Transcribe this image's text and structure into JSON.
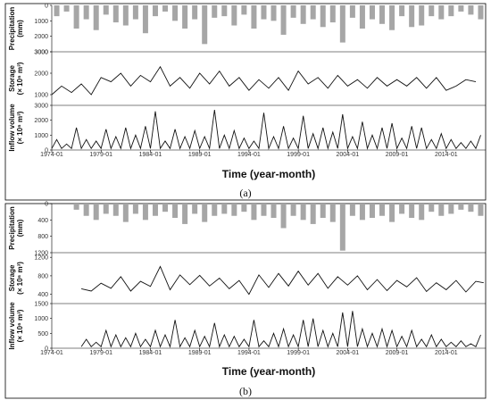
{
  "panels": [
    {
      "caption": "(a)",
      "xlabel": "Time (year-month)",
      "x_ticks": [
        "1974-01",
        "1979-01",
        "1984-01",
        "1989-01",
        "1994-01",
        "1999-01",
        "2004-01",
        "2009-01",
        "2014-01"
      ],
      "subplots": {
        "precip": {
          "ylabel_lines": [
            "Precipitation",
            "(mm)"
          ],
          "ticks": [
            "0",
            "1000",
            "2000",
            "3000"
          ],
          "ylim": [
            0,
            3000
          ],
          "inverted": true
        },
        "storage": {
          "ylabel_lines": [
            "Storage",
            "(× 10⁶ m³)"
          ],
          "ticks": [
            "1000",
            "2000",
            "3000"
          ],
          "ylim": [
            500,
            3000
          ]
        },
        "inflow": {
          "ylabel_lines": [
            "Inflow volume",
            "(× 10⁶ m³)"
          ],
          "ticks": [
            "0",
            "1000",
            "2000",
            "3000"
          ],
          "ylim": [
            0,
            3000
          ]
        }
      }
    },
    {
      "caption": "(b)",
      "xlabel": "Time (year-month)",
      "x_ticks": [
        "1974-01",
        "1979-01",
        "1984-01",
        "1989-01",
        "1994-01",
        "1999-01",
        "2004-01",
        "2009-01",
        "2014-01"
      ],
      "subplots": {
        "precip": {
          "ylabel_lines": [
            "Precipitation",
            "(mm)"
          ],
          "ticks": [
            "0",
            "400",
            "800",
            "1200"
          ],
          "ylim": [
            0,
            1200
          ],
          "inverted": true
        },
        "storage": {
          "ylabel_lines": [
            "Storage",
            "(× 10⁶ m³)"
          ],
          "ticks": [
            "400",
            "800",
            "1200"
          ],
          "ylim": [
            200,
            1300
          ]
        },
        "inflow": {
          "ylabel_lines": [
            "Inflow volume",
            "(× 10⁶ m³)"
          ],
          "ticks": [
            "0",
            "500",
            "1000",
            "1500"
          ],
          "ylim": [
            0,
            1500
          ]
        }
      }
    }
  ],
  "chart_data": [
    {
      "type": "bar",
      "panel": "a",
      "name": "precipitation",
      "x_range": [
        "1974-01",
        "2017-12"
      ],
      "x_year": [
        1974.5,
        1975.5,
        1976.5,
        1977.5,
        1978.5,
        1979.5,
        1980.5,
        1981.5,
        1982.5,
        1983.5,
        1984.5,
        1985.5,
        1986.5,
        1987.5,
        1988.5,
        1989.5,
        1990.5,
        1991.5,
        1992.5,
        1993.5,
        1994.5,
        1995.5,
        1996.5,
        1997.5,
        1998.5,
        1999.5,
        2000.5,
        2001.5,
        2002.5,
        2003.5,
        2004.5,
        2005.5,
        2006.5,
        2007.5,
        2008.5,
        2009.5,
        2010.5,
        2011.5,
        2012.5,
        2013.5,
        2014.5,
        2015.5,
        2016.5,
        2017.5
      ],
      "values": [
        700,
        400,
        1500,
        900,
        1600,
        600,
        1100,
        1300,
        900,
        1800,
        700,
        400,
        1000,
        1500,
        900,
        2500,
        800,
        700,
        1300,
        600,
        1500,
        900,
        1000,
        1900,
        800,
        1200,
        900,
        1400,
        1100,
        2400,
        800,
        1500,
        900,
        1200,
        1600,
        700,
        1400,
        1300,
        700,
        900,
        700,
        400,
        600,
        900
      ],
      "ylim": [
        0,
        3000
      ]
    },
    {
      "type": "line",
      "panel": "a",
      "name": "storage",
      "x_year": [
        1974.0,
        1975.0,
        1976.0,
        1977.0,
        1978.0,
        1979.0,
        1980.0,
        1981.0,
        1982.0,
        1983.0,
        1984.0,
        1985.0,
        1986.0,
        1987.0,
        1988.0,
        1989.0,
        1990.0,
        1991.0,
        1992.0,
        1993.0,
        1994.0,
        1995.0,
        1996.0,
        1997.0,
        1998.0,
        1999.0,
        2000.0,
        2001.0,
        2002.0,
        2003.0,
        2004.0,
        2005.0,
        2006.0,
        2007.0,
        2008.0,
        2009.0,
        2010.0,
        2011.0,
        2012.0,
        2013.0,
        2014.0,
        2015.0,
        2016.0,
        2017.0
      ],
      "values": [
        1000,
        1400,
        1100,
        1500,
        1000,
        1800,
        1600,
        2000,
        1400,
        1900,
        1600,
        2300,
        1400,
        1800,
        1300,
        2000,
        1500,
        2100,
        1400,
        1800,
        1200,
        1700,
        1300,
        1800,
        1200,
        2100,
        1500,
        1800,
        1300,
        1900,
        1400,
        1700,
        1300,
        1800,
        1400,
        1700,
        1400,
        1800,
        1300,
        1800,
        1200,
        1400,
        1700,
        1600
      ],
      "ylim": [
        500,
        3000
      ]
    },
    {
      "type": "line",
      "panel": "a",
      "name": "inflow volume",
      "x_year": [
        1974.0,
        1974.5,
        1975.0,
        1975.5,
        1976.0,
        1976.5,
        1977.0,
        1977.5,
        1978.0,
        1978.5,
        1979.0,
        1979.5,
        1980.0,
        1980.5,
        1981.0,
        1981.5,
        1982.0,
        1982.5,
        1983.0,
        1983.5,
        1984.0,
        1984.5,
        1985.0,
        1985.5,
        1986.0,
        1986.5,
        1987.0,
        1987.5,
        1988.0,
        1988.5,
        1989.0,
        1989.5,
        1990.0,
        1990.5,
        1991.0,
        1991.5,
        1992.0,
        1992.5,
        1993.0,
        1993.5,
        1994.0,
        1994.5,
        1995.0,
        1995.5,
        1996.0,
        1996.5,
        1997.0,
        1997.5,
        1998.0,
        1998.5,
        1999.0,
        1999.5,
        2000.0,
        2000.5,
        2001.0,
        2001.5,
        2002.0,
        2002.5,
        2003.0,
        2003.5,
        2004.0,
        2004.5,
        2005.0,
        2005.5,
        2006.0,
        2006.5,
        2007.0,
        2007.5,
        2008.0,
        2008.5,
        2009.0,
        2009.5,
        2010.0,
        2010.5,
        2011.0,
        2011.5,
        2012.0,
        2012.5,
        2013.0,
        2013.5,
        2014.0,
        2014.5,
        2015.0,
        2015.5,
        2016.0,
        2016.5,
        2017.0,
        2017.5
      ],
      "values": [
        100,
        700,
        100,
        400,
        100,
        1500,
        100,
        700,
        100,
        600,
        100,
        1400,
        100,
        900,
        100,
        1500,
        100,
        1000,
        100,
        1600,
        100,
        2600,
        100,
        600,
        100,
        1400,
        100,
        900,
        100,
        1300,
        100,
        900,
        100,
        2700,
        100,
        1000,
        100,
        1300,
        100,
        800,
        100,
        600,
        100,
        2500,
        100,
        900,
        100,
        1600,
        100,
        800,
        100,
        2300,
        100,
        1100,
        100,
        1500,
        100,
        1200,
        100,
        2400,
        100,
        900,
        100,
        1900,
        100,
        1000,
        100,
        1500,
        100,
        1800,
        100,
        800,
        100,
        1600,
        100,
        1500,
        100,
        700,
        100,
        1100,
        100,
        700,
        100,
        500,
        100,
        600,
        100,
        1000
      ],
      "ylim": [
        0,
        3000
      ]
    },
    {
      "type": "bar",
      "panel": "b",
      "name": "precipitation",
      "x_year": [
        1976.5,
        1977.5,
        1978.5,
        1979.5,
        1980.5,
        1981.5,
        1982.5,
        1983.5,
        1984.5,
        1985.5,
        1986.5,
        1987.5,
        1988.5,
        1989.5,
        1990.5,
        1991.5,
        1992.5,
        1993.5,
        1994.5,
        1995.5,
        1996.5,
        1997.5,
        1998.5,
        1999.5,
        2000.5,
        2001.5,
        2002.5,
        2003.5,
        2004.5,
        2005.5,
        2006.5,
        2007.5,
        2008.5,
        2009.5,
        2010.5,
        2011.5,
        2012.5,
        2013.5,
        2014.5,
        2015.5,
        2016.5,
        2017.5
      ],
      "values": [
        150,
        300,
        400,
        250,
        300,
        450,
        250,
        400,
        300,
        200,
        350,
        500,
        250,
        450,
        300,
        250,
        300,
        200,
        400,
        300,
        350,
        600,
        300,
        400,
        500,
        350,
        450,
        1150,
        300,
        400,
        350,
        300,
        450,
        250,
        350,
        400,
        200,
        300,
        250,
        150,
        200,
        300
      ],
      "ylim": [
        0,
        1200
      ]
    },
    {
      "type": "line",
      "panel": "b",
      "name": "storage",
      "x_year": [
        1977.0,
        1978.0,
        1979.0,
        1980.0,
        1981.0,
        1982.0,
        1983.0,
        1984.0,
        1985.0,
        1986.0,
        1987.0,
        1988.0,
        1989.0,
        1990.0,
        1991.0,
        1992.0,
        1993.0,
        1994.0,
        1995.0,
        1996.0,
        1997.0,
        1998.0,
        1999.0,
        2000.0,
        2001.0,
        2002.0,
        2003.0,
        2004.0,
        2005.0,
        2006.0,
        2007.0,
        2008.0,
        2009.0,
        2010.0,
        2011.0,
        2012.0,
        2013.0,
        2014.0,
        2015.0,
        2016.0,
        2017.0,
        2017.8
      ],
      "values": [
        520,
        470,
        640,
        530,
        780,
        470,
        680,
        570,
        1000,
        500,
        820,
        610,
        810,
        580,
        750,
        520,
        700,
        400,
        820,
        550,
        850,
        580,
        900,
        600,
        850,
        530,
        780,
        600,
        800,
        500,
        720,
        480,
        700,
        560,
        760,
        460,
        650,
        500,
        700,
        450,
        680,
        650
      ],
      "ylim": [
        200,
        1300
      ]
    },
    {
      "type": "line",
      "panel": "b",
      "name": "inflow volume",
      "x_year": [
        1977.0,
        1977.5,
        1978.0,
        1978.5,
        1979.0,
        1979.5,
        1980.0,
        1980.5,
        1981.0,
        1981.5,
        1982.0,
        1982.5,
        1983.0,
        1983.5,
        1984.0,
        1984.5,
        1985.0,
        1985.5,
        1986.0,
        1986.5,
        1987.0,
        1987.5,
        1988.0,
        1988.5,
        1989.0,
        1989.5,
        1990.0,
        1990.5,
        1991.0,
        1991.5,
        1992.0,
        1992.5,
        1993.0,
        1993.5,
        1994.0,
        1994.5,
        1995.0,
        1995.5,
        1996.0,
        1996.5,
        1997.0,
        1997.5,
        1998.0,
        1998.5,
        1999.0,
        1999.5,
        2000.0,
        2000.5,
        2001.0,
        2001.5,
        2002.0,
        2002.5,
        2003.0,
        2003.5,
        2004.0,
        2004.5,
        2005.0,
        2005.5,
        2006.0,
        2006.5,
        2007.0,
        2007.5,
        2008.0,
        2008.5,
        2009.0,
        2009.5,
        2010.0,
        2010.5,
        2011.0,
        2011.5,
        2012.0,
        2012.5,
        2013.0,
        2013.5,
        2014.0,
        2014.5,
        2015.0,
        2015.5,
        2016.0,
        2016.5,
        2017.0,
        2017.5
      ],
      "values": [
        50,
        300,
        50,
        200,
        50,
        600,
        50,
        450,
        50,
        350,
        50,
        500,
        50,
        300,
        50,
        600,
        50,
        450,
        50,
        950,
        50,
        350,
        50,
        600,
        50,
        400,
        50,
        850,
        50,
        450,
        50,
        400,
        50,
        300,
        50,
        950,
        50,
        250,
        50,
        500,
        50,
        650,
        50,
        450,
        50,
        950,
        50,
        1000,
        50,
        600,
        50,
        500,
        50,
        1200,
        50,
        1250,
        50,
        650,
        50,
        500,
        50,
        650,
        50,
        600,
        50,
        400,
        50,
        600,
        50,
        300,
        50,
        450,
        50,
        300,
        50,
        200,
        50,
        250,
        50,
        150,
        50,
        450
      ],
      "ylim": [
        0,
        1500
      ]
    }
  ]
}
